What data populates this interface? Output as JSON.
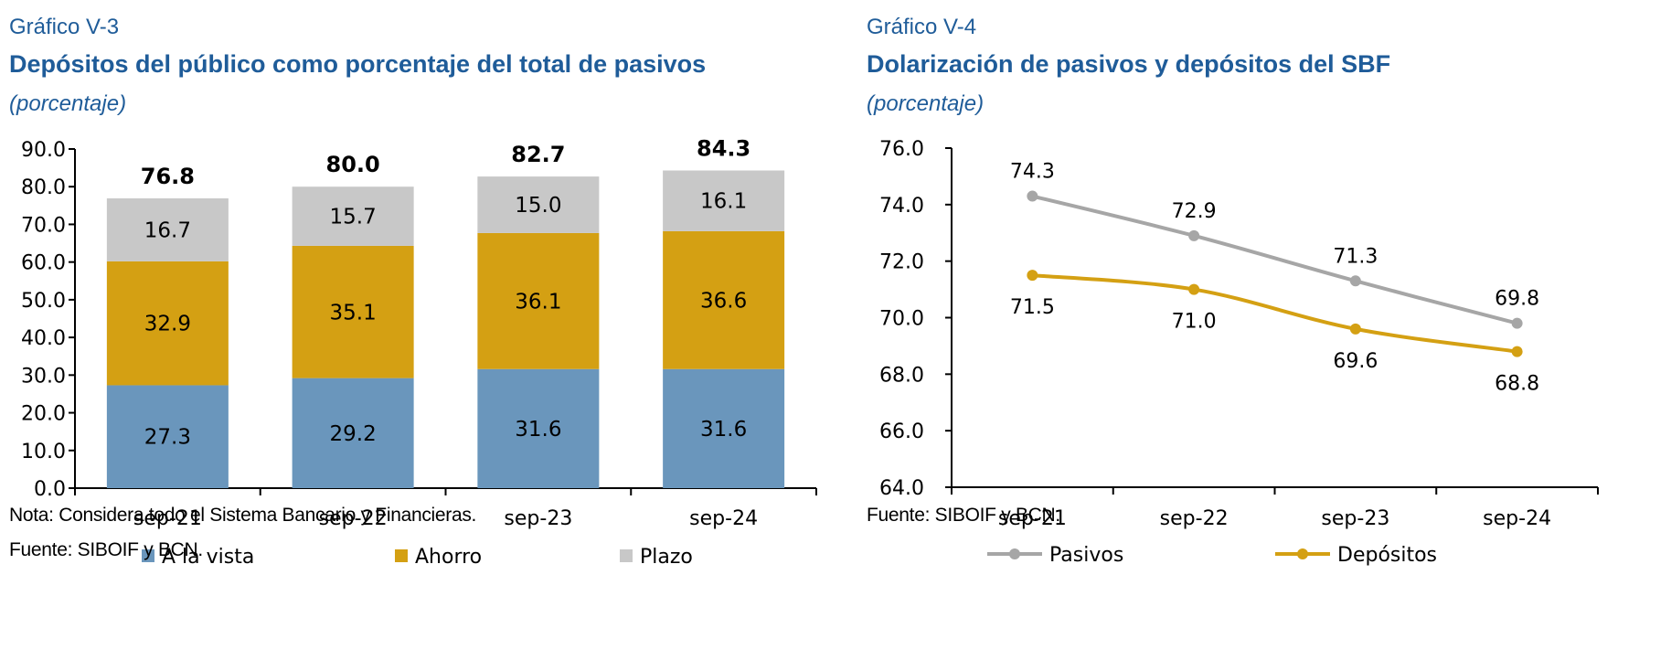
{
  "left": {
    "figure_number": "Gráfico V-3",
    "title": "Depósitos del público como porcentaje del total de pasivos",
    "subtitle": "(porcentaje)",
    "note": "Nota: Considera todo el Sistema Bancario y Financieras.",
    "source": "Fuente: SIBOIF y BCN."
  },
  "right": {
    "figure_number": "Gráfico V-4",
    "title": "Dolarización de pasivos y depósitos del SBF",
    "subtitle": "(porcentaje)",
    "source": "Fuente: SIBOIF y BCN."
  },
  "chart_data": [
    {
      "type": "bar",
      "stacked": true,
      "categories": [
        "sep-21",
        "sep-22",
        "sep-23",
        "sep-24"
      ],
      "series": [
        {
          "name": "A la vista",
          "color": "#6a96bc",
          "values": [
            27.3,
            29.2,
            31.6,
            31.6
          ]
        },
        {
          "name": "Ahorro",
          "color": "#d4a013",
          "values": [
            32.9,
            35.1,
            36.1,
            36.6
          ]
        },
        {
          "name": "Plazo",
          "color": "#c8c8c8",
          "values": [
            16.7,
            15.7,
            15.0,
            16.1
          ]
        }
      ],
      "totals": [
        "76.8",
        "80.0",
        "82.7",
        "84.3"
      ],
      "value_labels": [
        [
          "27.3",
          "29.2",
          "31.6",
          "31.6"
        ],
        [
          "32.9",
          "35.1",
          "36.1",
          "36.6"
        ],
        [
          "16.7",
          "15.7",
          "15.0",
          "16.1"
        ]
      ],
      "yticks": [
        "0.0",
        "10.0",
        "20.0",
        "30.0",
        "40.0",
        "50.0",
        "60.0",
        "70.0",
        "80.0",
        "90.0"
      ],
      "ylim": [
        0,
        90
      ],
      "legend_position": "bottom",
      "grid": false
    },
    {
      "type": "line",
      "categories": [
        "sep-21",
        "sep-22",
        "sep-23",
        "sep-24"
      ],
      "series": [
        {
          "name": "Pasivos",
          "color": "#a6a6a6",
          "values": [
            74.3,
            72.9,
            71.3,
            69.8
          ],
          "labels": [
            "74.3",
            "72.9",
            "71.3",
            "69.8"
          ]
        },
        {
          "name": "Depósitos",
          "color": "#d4a013",
          "values": [
            71.5,
            71.0,
            69.6,
            68.8
          ],
          "labels": [
            "71.5",
            "71.0",
            "69.6",
            "68.8"
          ]
        }
      ],
      "yticks": [
        "64.0",
        "66.0",
        "68.0",
        "70.0",
        "72.0",
        "74.0",
        "76.0"
      ],
      "ylim": [
        64,
        76
      ],
      "legend_position": "bottom",
      "grid": false
    }
  ]
}
